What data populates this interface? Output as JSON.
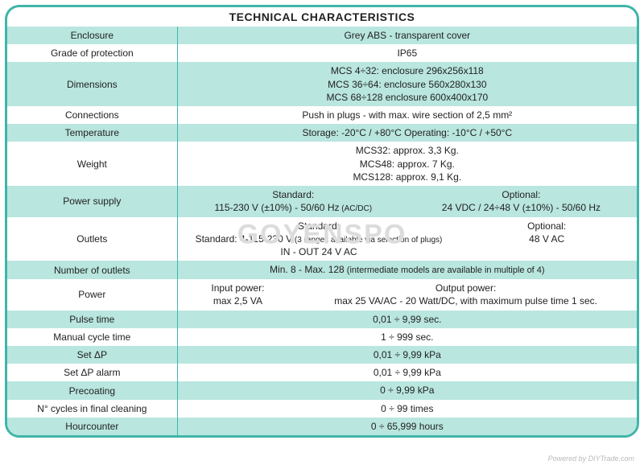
{
  "title": "TECHNICAL CHARACTERISTICS",
  "watermark": "GOYENSPO",
  "footer": "Powered by DIYTrade.com",
  "rows": {
    "r0": {
      "label": "Enclosure",
      "value": "Grey ABS - transparent cover"
    },
    "r1": {
      "label": "Grade of protection",
      "value": "IP65"
    },
    "r2": {
      "label": "Dimensions",
      "l1": "MCS 4÷32: enclosure 296x256x118",
      "l2": "MCS 36÷64: enclosure 560x280x130",
      "l3": "MCS 68÷128 enclosure 600x400x170"
    },
    "r3": {
      "label": "Connections",
      "value": "Push in plugs - with max. wire section of 2,5 mm²"
    },
    "r4": {
      "label": "Temperature",
      "value": "Storage: -20°C / +80°C    Operating: -10°C / +50°C"
    },
    "r5": {
      "label": "Weight",
      "l1": "MCS32: approx. 3,3 Kg.",
      "l2": "MCS48: approx. 7 Kg.",
      "l3": "MCS128: approx. 9,1 Kg."
    },
    "r6": {
      "label": "Power supply",
      "left_h": "Standard:",
      "left_v": "115-230 V (±10%) - 50/60 Hz",
      "left_note": " (AC/DC)",
      "right_h": "Optional:",
      "right_v": "24 VDC / 24÷48 V (±10%) - 50/60 Hz"
    },
    "r7": {
      "label": "Outlets",
      "left_h": "Standard:",
      "left_v": "Standard: 4-115-230 V",
      "left_note": " (3 ranges available via selection of plugs)",
      "left_extra": "IN - OUT 24 V AC",
      "right_h": "Optional:",
      "right_v": "48 V AC"
    },
    "r8": {
      "label": "Number of outlets",
      "value": "Min. 8 - Max. 128",
      "note": " (intermediate models are available in multiple of 4)"
    },
    "r9": {
      "label": "Power",
      "left_h": "Input power:",
      "left_v": "max 2,5 VA",
      "right_h": "Output power:",
      "right_v": "max 25 VA/AC - 20 Watt/DC, with maximum pulse time 1 sec."
    },
    "r10": {
      "label": "Pulse time",
      "value": "0,01 ÷ 9,99 sec."
    },
    "r11": {
      "label": "Manual cycle time",
      "value": "1 ÷ 999 sec."
    },
    "r12": {
      "label": "Set ΔP",
      "value": "0,01 ÷ 9,99 kPa"
    },
    "r13": {
      "label": "Set ΔP alarm",
      "value": "0,01 ÷ 9,99 kPa"
    },
    "r14": {
      "label": "Precoating",
      "value": "0 ÷ 9,99 kPa"
    },
    "r15": {
      "label": "N° cycles in final cleaning",
      "value": "0 ÷ 99 times"
    },
    "r16": {
      "label": "Hourcounter",
      "value": "0 ÷ 65,999 hours"
    }
  },
  "colors": {
    "border": "#3fb5a8",
    "mint": "#b9e6df",
    "white": "#ffffff",
    "text": "#222222"
  }
}
